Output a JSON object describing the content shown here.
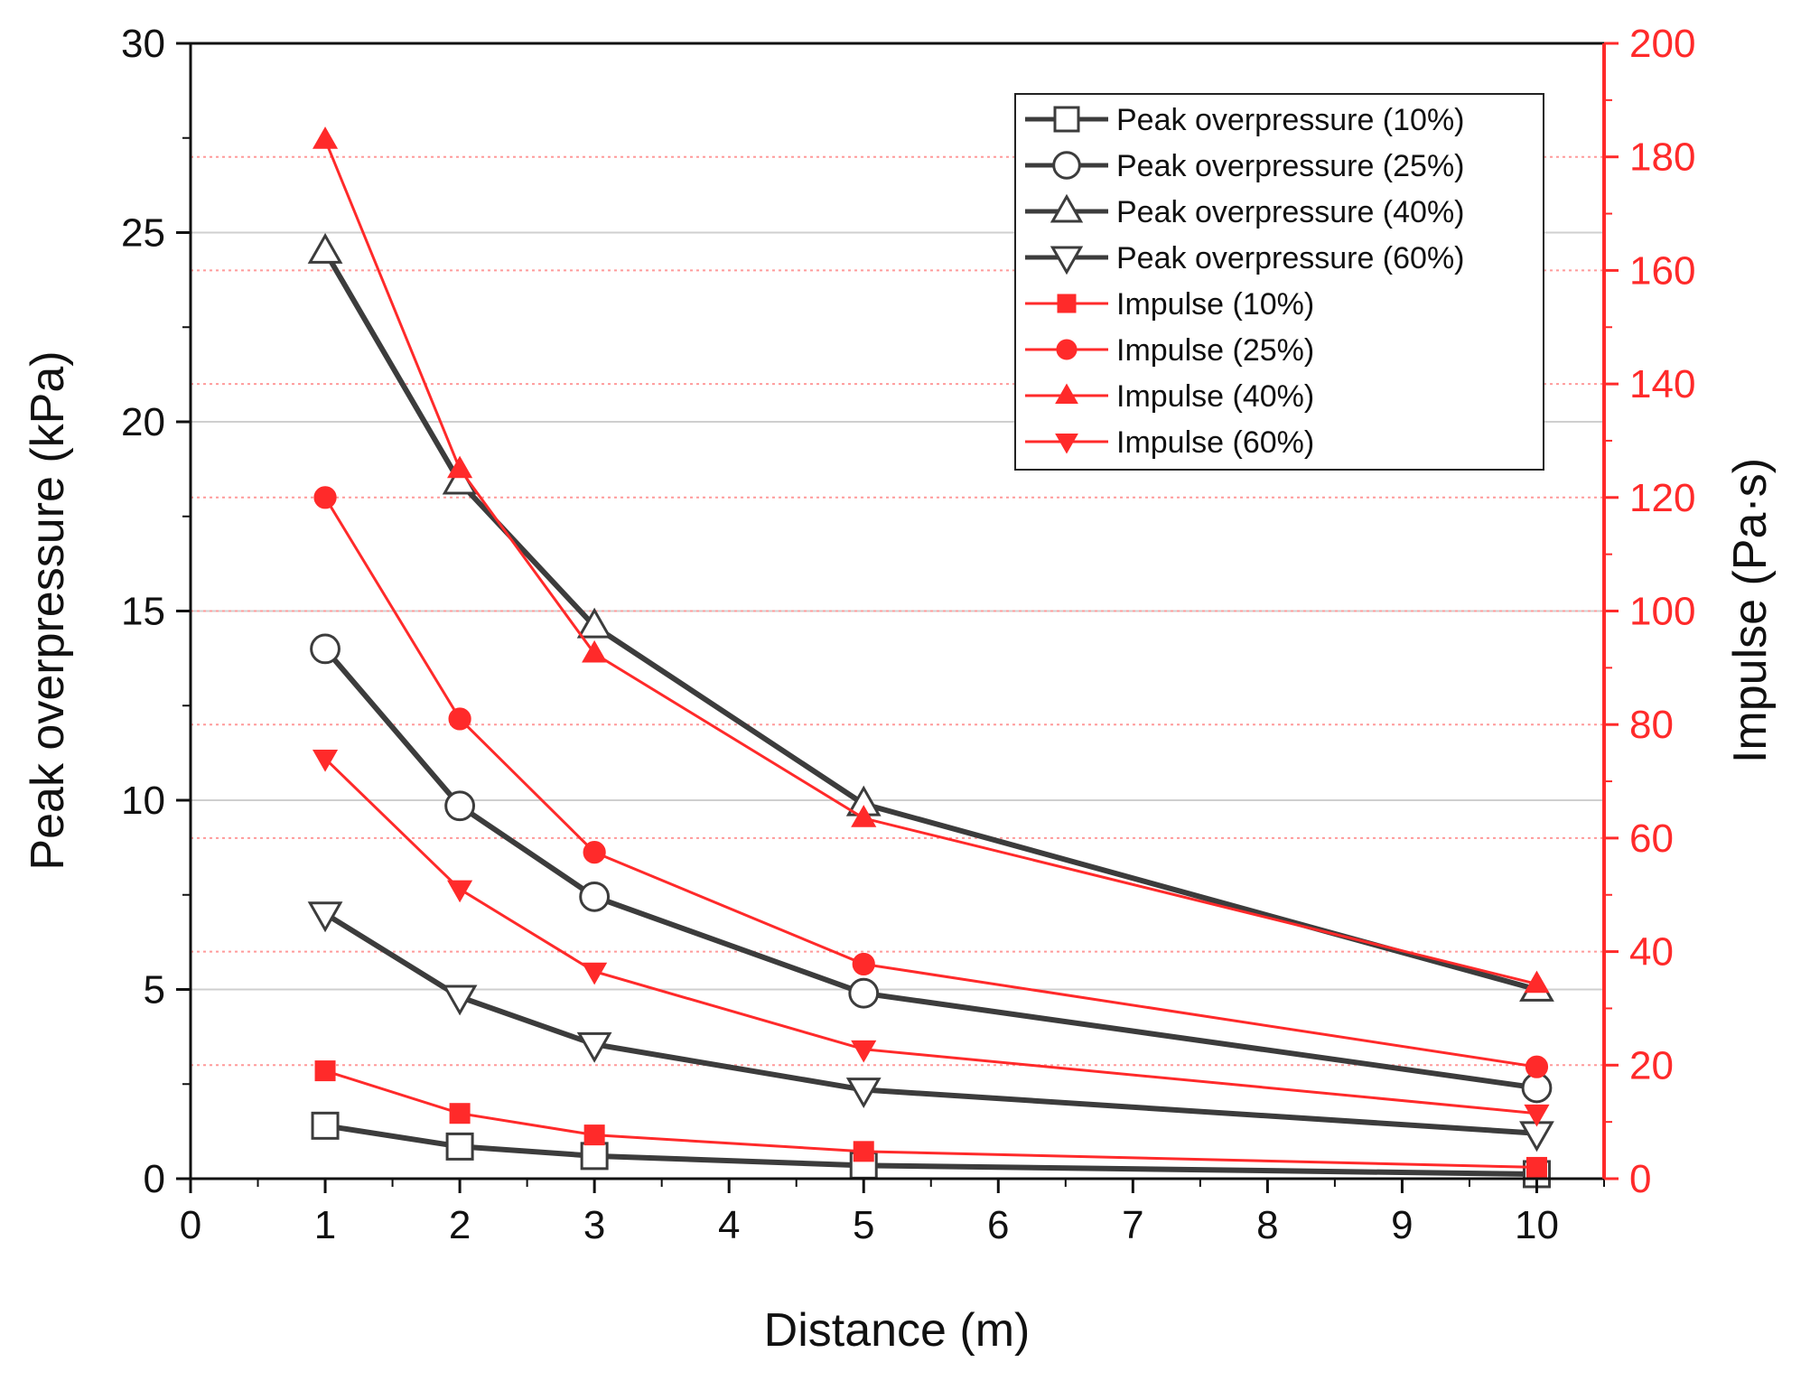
{
  "colors": {
    "pressure": "#3c3c3c",
    "impulse": "#ff2a2a",
    "grid": "#cfcfcf",
    "impulse_grid": "#ff9a9a",
    "axis": "#111111"
  },
  "chart_data": {
    "type": "line",
    "xlabel": "Distance (m)",
    "ylabel": "Peak overpressure (kPa)",
    "y2label": "Impulse (Pa·s)",
    "xlim": [
      0,
      10.5
    ],
    "ylim": [
      0,
      30
    ],
    "y2lim": [
      0,
      200
    ],
    "xticks": [
      "0",
      "1",
      "2",
      "3",
      "4",
      "5",
      "6",
      "7",
      "8",
      "9",
      "10"
    ],
    "yticks": [
      "0",
      "5",
      "10",
      "15",
      "20",
      "25",
      "30"
    ],
    "y2ticks": [
      "0",
      "20",
      "40",
      "60",
      "80",
      "100",
      "120",
      "140",
      "160",
      "180",
      "200"
    ],
    "x_positions": [
      1,
      2,
      3,
      5,
      10
    ],
    "legend_position": "top-right",
    "series": [
      {
        "name": "Peak overpressure (10%)",
        "axis": "left",
        "marker": "square-open",
        "values": [
          1.4,
          0.85,
          0.6,
          0.35,
          0.12
        ]
      },
      {
        "name": "Peak overpressure (25%)",
        "axis": "left",
        "marker": "circle-open",
        "values": [
          14.0,
          9.85,
          7.45,
          4.9,
          2.4
        ]
      },
      {
        "name": "Peak overpressure (40%)",
        "axis": "left",
        "marker": "triangle-up-open",
        "values": [
          24.5,
          18.4,
          14.6,
          9.9,
          5.0
        ]
      },
      {
        "name": "Peak overpressure (60%)",
        "axis": "left",
        "marker": "triangle-down-open",
        "values": [
          7.0,
          4.8,
          3.55,
          2.35,
          1.2
        ]
      },
      {
        "name": "Impulse (10%)",
        "axis": "right",
        "marker": "square-filled",
        "values": [
          19,
          11.5,
          7.7,
          4.8,
          2.0
        ]
      },
      {
        "name": "Impulse (25%)",
        "axis": "right",
        "marker": "circle-filled",
        "values": [
          120,
          81,
          57.5,
          37.8,
          19.7
        ]
      },
      {
        "name": "Impulse (40%)",
        "axis": "right",
        "marker": "triangle-up-filled",
        "values": [
          183,
          125,
          92.5,
          63.5,
          34.3
        ]
      },
      {
        "name": "Impulse (60%)",
        "axis": "right",
        "marker": "triangle-down-filled",
        "values": [
          74,
          51,
          36.5,
          22.8,
          11.5
        ]
      }
    ]
  }
}
